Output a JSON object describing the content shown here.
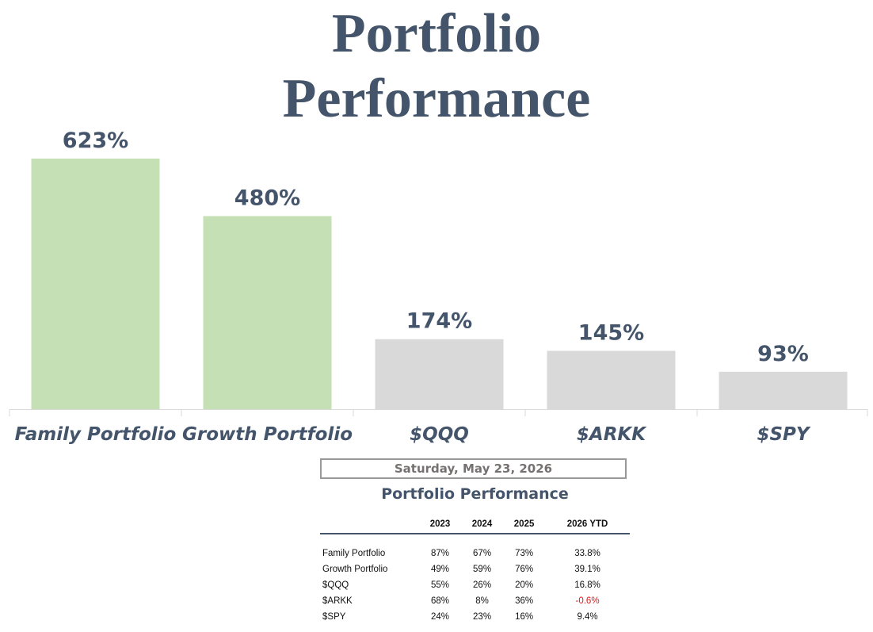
{
  "chart_data": {
    "type": "bar",
    "title": "Portfolio Performance",
    "categories": [
      "Family Portfolio",
      "Growth Portfolio",
      "$QQQ",
      "$ARKK",
      "$SPY"
    ],
    "values": [
      623,
      480,
      174,
      145,
      93
    ],
    "value_labels": [
      "623%",
      "480%",
      "174%",
      "145%",
      "93%"
    ],
    "bar_colors": [
      "#c5e0b4",
      "#c5e0b4",
      "#d9d9d9",
      "#d9d9d9",
      "#d9d9d9"
    ],
    "label_color": "#44546A",
    "ylim": [
      0,
      623
    ],
    "grid": false,
    "legend": "none"
  },
  "table": {
    "date": "Saturday, May 23, 2026",
    "title": "Portfolio Performance",
    "columns": [
      "",
      "2023",
      "2024",
      "2025",
      "2026 YTD"
    ],
    "rows": [
      {
        "name": "Family Portfolio",
        "y2023": "87%",
        "y2024": "67%",
        "y2025": "73%",
        "ytd": "33.8%"
      },
      {
        "name": "Growth Portfolio",
        "y2023": "49%",
        "y2024": "59%",
        "y2025": "76%",
        "ytd": "39.1%"
      },
      {
        "name": "$QQQ",
        "y2023": "55%",
        "y2024": "26%",
        "y2025": "20%",
        "ytd": "16.8%"
      },
      {
        "name": "$ARKK",
        "y2023": "68%",
        "y2024": "8%",
        "y2025": "36%",
        "ytd": "-0.6%"
      },
      {
        "name": "$SPY",
        "y2023": "24%",
        "y2024": "23%",
        "y2025": "16%",
        "ytd": "9.4%"
      }
    ],
    "negative_color": "#e8141a"
  }
}
